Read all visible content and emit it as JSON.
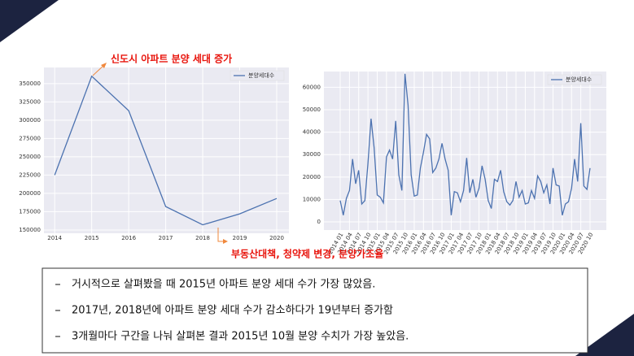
{
  "chart_data": [
    {
      "type": "line",
      "x": [
        2014,
        2015,
        2016,
        2017,
        2018,
        2019,
        2020
      ],
      "series": [
        {
          "name": "분양세대수",
          "color": "#4c72b0",
          "values": [
            225000,
            360000,
            313000,
            182000,
            157000,
            172000,
            193000
          ]
        }
      ],
      "xlim": [
        2013.71,
        2020.33
      ],
      "xticks": [
        2014,
        2015,
        2016,
        2017,
        2018,
        2019,
        2020
      ],
      "ylim": [
        145500,
        372000
      ],
      "yticks": [
        150000,
        175000,
        200000,
        225000,
        250000,
        275000,
        300000,
        325000,
        350000
      ],
      "grid": true,
      "legend": "upper right",
      "annotations": [
        "신도시 아파트 분양 세대 증가",
        "부동산대책, 청약제 변경, 분양가조율"
      ]
    },
    {
      "type": "line",
      "categories": [
        "2014 01",
        null,
        null,
        "2014 04",
        null,
        null,
        "2014 07",
        null,
        null,
        "2014 10",
        null,
        null,
        "2015 01",
        null,
        null,
        "2015 04",
        null,
        null,
        "2015 07",
        null,
        null,
        "2015 10",
        null,
        null,
        "2016 01",
        null,
        null,
        "2016 04",
        null,
        null,
        "2016 07",
        null,
        null,
        "2016 10",
        null,
        null,
        "2017 01",
        null,
        null,
        "2017 04",
        null,
        null,
        "2017 07",
        null,
        null,
        "2017 10",
        null,
        null,
        "2018 01",
        null,
        null,
        "2018 04",
        null,
        null,
        "2018 07",
        null,
        null,
        "2018 10",
        null,
        null,
        "2019 01",
        null,
        null,
        "2019 04",
        null,
        null,
        "2019 07",
        null,
        null,
        "2019 10",
        null,
        null,
        "2020 01",
        null,
        null,
        "2020 04",
        null,
        null,
        "2020 07",
        null,
        null,
        "2020 10"
      ],
      "series": [
        {
          "name": "분양세대수",
          "color": "#4c72b0",
          "values": [
            9500,
            3000,
            10500,
            14000,
            28000,
            17000,
            23000,
            8000,
            9500,
            26000,
            46000,
            33000,
            12000,
            11000,
            8500,
            29000,
            32000,
            28000,
            45000,
            21000,
            14000,
            66000,
            52000,
            21000,
            11500,
            12000,
            24000,
            31000,
            39000,
            37000,
            22000,
            24000,
            28000,
            35000,
            28000,
            23000,
            3000,
            13500,
            13000,
            9000,
            14000,
            28500,
            13000,
            19000,
            11000,
            15000,
            25000,
            19000,
            9500,
            6000,
            19000,
            18000,
            23000,
            13500,
            9000,
            7500,
            9500,
            18000,
            11000,
            14000,
            8000,
            8500,
            14000,
            10500,
            20500,
            18000,
            13000,
            16500,
            8000,
            24000,
            16500,
            16000,
            3000,
            8000,
            9000,
            15000,
            28000,
            18000,
            44000,
            16000,
            14500,
            24000
          ]
        }
      ],
      "ylim": [
        -3600,
        67000
      ],
      "yticks": [
        0,
        10000,
        20000,
        30000,
        40000,
        50000,
        60000
      ],
      "grid": true,
      "legend": "upper right"
    }
  ],
  "text_box": {
    "items": [
      "거시적으로 살펴봤을 때 2015년 아파트 분양 세대 수가 가장 많았음.",
      "2017년, 2018년에 아파트 분양 세대 수가 감소하다가 19년부터 증가함",
      "3개월마다 구간을 나눠 살펴본 결과 2015년 10월 분양 수치가 가장 높았음."
    ]
  }
}
